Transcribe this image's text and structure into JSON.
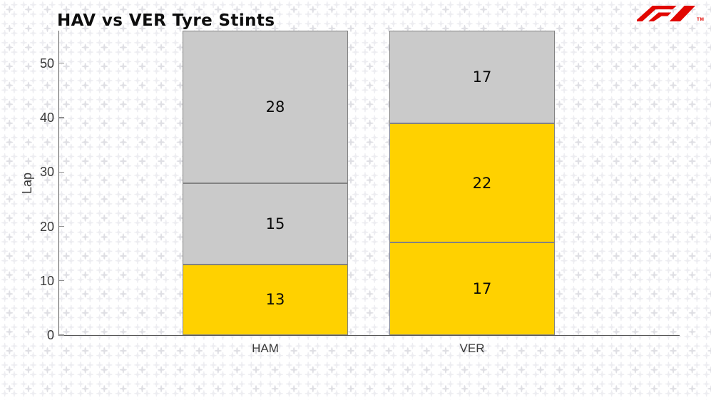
{
  "chart_data": {
    "type": "bar",
    "variant": "stacked",
    "title": "HAV vs VER Tyre Stints",
    "ylabel": "Lap",
    "xlabel": "",
    "categories": [
      "HAM",
      "VER"
    ],
    "stacks": [
      {
        "category": "HAM",
        "segments": [
          {
            "value": 13,
            "compound": "yellow"
          },
          {
            "value": 15,
            "compound": "grey"
          },
          {
            "value": 28,
            "compound": "grey"
          }
        ]
      },
      {
        "category": "VER",
        "segments": [
          {
            "value": 17,
            "compound": "yellow"
          },
          {
            "value": 22,
            "compound": "yellow"
          },
          {
            "value": 17,
            "compound": "grey"
          }
        ]
      }
    ],
    "segment_colors": {
      "yellow": "#FFD100",
      "grey": "#CACACA"
    },
    "segment_edge_color": "#828282",
    "yticks": [
      0,
      10,
      20,
      30,
      40,
      50
    ],
    "ylim": [
      0,
      56
    ],
    "grid": false,
    "legend": "none"
  },
  "logo": {
    "name": "Formula 1",
    "tm": "TM",
    "color": "#E10600"
  }
}
